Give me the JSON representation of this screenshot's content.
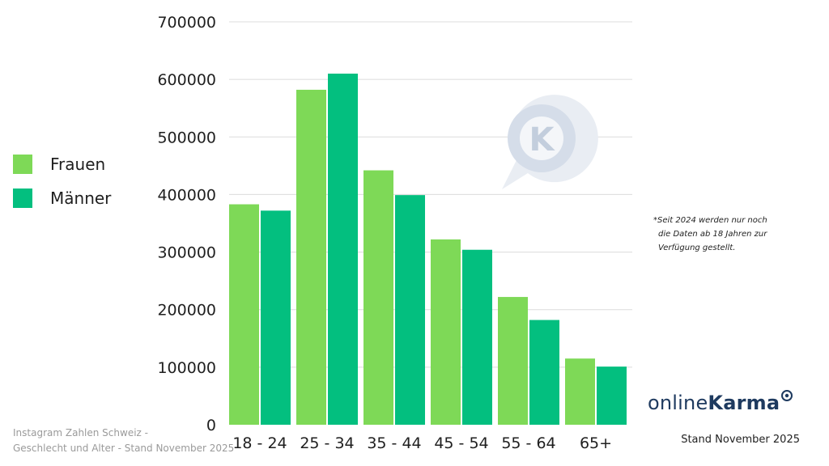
{
  "chart_data": {
    "type": "bar",
    "categories": [
      "18 - 24",
      "25 - 34",
      "35 - 44",
      "45 - 54",
      "55 - 64",
      "65+"
    ],
    "series": [
      {
        "name": "Frauen",
        "values": [
          383000,
          582000,
          442000,
          322000,
          222000,
          115000
        ],
        "color": "#7ed957"
      },
      {
        "name": "Männer",
        "values": [
          372000,
          610000,
          399000,
          304000,
          182000,
          101000
        ],
        "color": "#03bf7f"
      }
    ],
    "yticks": [
      0,
      100000,
      200000,
      300000,
      400000,
      500000,
      600000,
      700000
    ],
    "ylim": [
      0,
      700000
    ],
    "grid": true,
    "legend_position": "left",
    "title": "",
    "xlabel": "",
    "ylabel": ""
  },
  "legend": {
    "items": [
      {
        "label": "Frauen",
        "color": "#7ed957"
      },
      {
        "label": "Männer",
        "color": "#03bf7f"
      }
    ]
  },
  "note": {
    "lines": [
      "*Seit 2024 werden nur noch",
      "die Daten ab 18 Jahren zur",
      "Verfügung gestellt."
    ]
  },
  "caption": {
    "line1": "Instagram Zahlen Schweiz -",
    "line2": "Geschlecht und Alter - Stand November 2025"
  },
  "stand": "Stand November 2025",
  "logo": {
    "text_light": "online",
    "text_bold": "Karma",
    "color": "#1e3a5f",
    "icon": "speech-bubble-icon"
  },
  "watermark": {
    "letter": "K",
    "icon": "speech-bubble-watermark-icon"
  }
}
